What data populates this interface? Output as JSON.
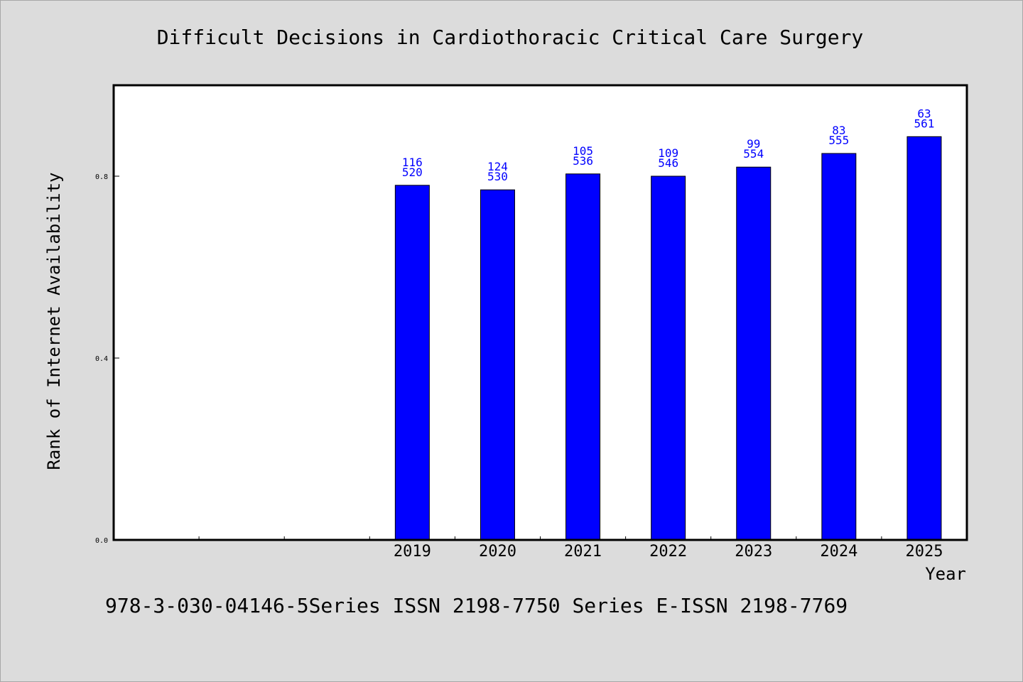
{
  "chart_data": {
    "type": "bar",
    "title": "Difficult Decisions in Cardiothoracic Critical Care Surgery",
    "xlabel": "Year",
    "ylabel": "Rank of Internet Availability",
    "ylim": [
      0.0,
      1.0
    ],
    "yticks": [
      "0.0",
      "0.4",
      "0.8"
    ],
    "x_slots": 10,
    "categories": [
      "2019",
      "2020",
      "2021",
      "2022",
      "2023",
      "2024",
      "2025"
    ],
    "values": [
      0.78,
      0.77,
      0.805,
      0.8,
      0.82,
      0.85,
      0.887
    ],
    "labels_top": [
      "116",
      "124",
      "105",
      "109",
      "99",
      "83",
      "63"
    ],
    "labels_bottom": [
      "520",
      "530",
      "536",
      "546",
      "554",
      "555",
      "561"
    ],
    "bar_color": "#0000ff",
    "label_color": "#0000ff",
    "grid": false,
    "legend": "none"
  },
  "footer": "978-3-030-04146-5Series ISSN 2198-7750 Series E-ISSN 2198-7769"
}
